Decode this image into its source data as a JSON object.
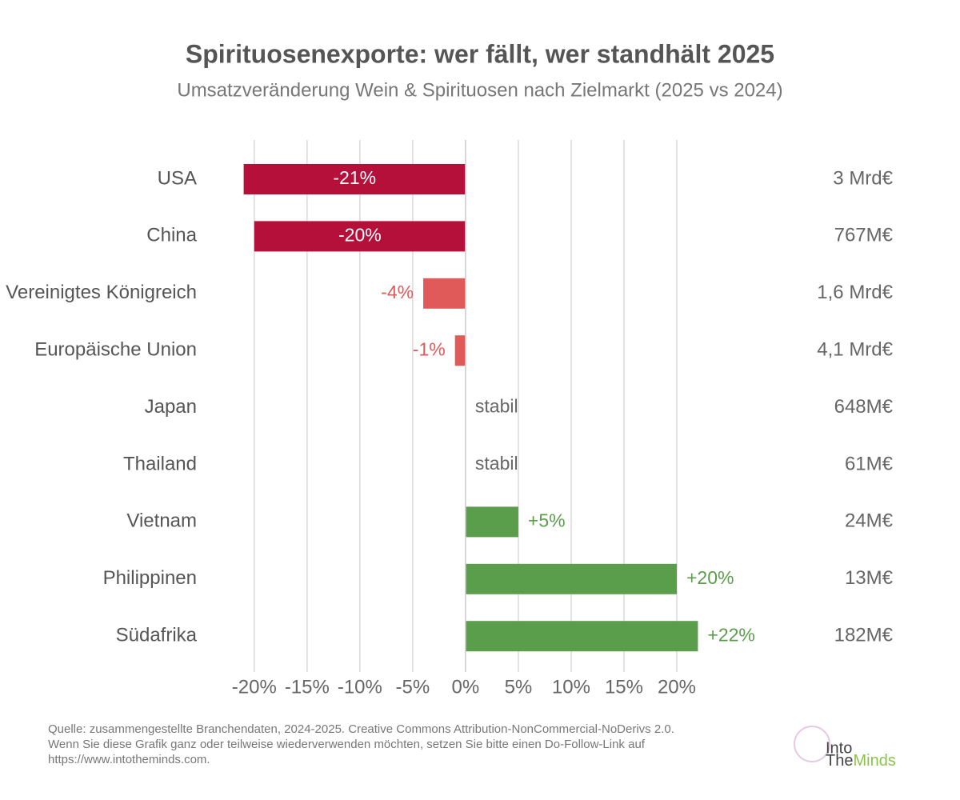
{
  "chart_data": {
    "type": "hbar",
    "title": "Spirituosenexporte: wer fällt, wer standhält 2025",
    "subtitle": "Umsatzveränderung Wein & Spirituosen nach Zielmarkt (2025 vs 2024)",
    "categories": [
      "USA",
      "China",
      "Vereinigtes Königreich",
      "Europäische Union",
      "Japan",
      "Thailand",
      "Vietnam",
      "Philippinen",
      "Südafrika"
    ],
    "values": [
      -21,
      -20,
      -4,
      -1,
      0,
      0,
      5,
      20,
      22
    ],
    "value_labels": [
      "-21%",
      "-20%",
      "-4%",
      "-1%",
      "stabil",
      "stabil",
      "+5%",
      "+20%",
      "+22%"
    ],
    "colors": [
      "#b5103a",
      "#b5103a",
      "#e05a5a",
      "#e05a5a",
      "#666666",
      "#666666",
      "#5a9e4b",
      "#5a9e4b",
      "#5a9e4b"
    ],
    "market_sizes": [
      "3 Mrd€",
      "767M€",
      "1,6 Mrd€",
      "4,1 Mrd€",
      "648M€",
      "61M€",
      "24M€",
      "13M€",
      "182M€"
    ],
    "xlim": [
      -21.5,
      22.5
    ],
    "xticks": [
      {
        "value": -20,
        "label": "-20%"
      },
      {
        "value": -15,
        "label": "-15%"
      },
      {
        "value": -10,
        "label": "-10%"
      },
      {
        "value": -5,
        "label": "-5%"
      },
      {
        "value": 0,
        "label": "0%"
      },
      {
        "value": 5,
        "label": "5%"
      },
      {
        "value": 10,
        "label": "10%"
      },
      {
        "value": 15,
        "label": "15%"
      },
      {
        "value": 20,
        "label": "20%"
      }
    ],
    "grid": true,
    "source": [
      "Quelle: zusammengestellte Branchendaten, 2024-2025. Creative Commons Attribution-NonCommercial-NoDerivs 2.0.",
      "Wenn Sie diese Grafik ganz oder teilweise wiederverwenden möchten, setzen Sie bitte einen Do-Follow-Link auf",
      "https://www.intotheminds.com."
    ],
    "logo": {
      "line1": "Into",
      "line2a": "The",
      "line2b": "Minds"
    }
  }
}
